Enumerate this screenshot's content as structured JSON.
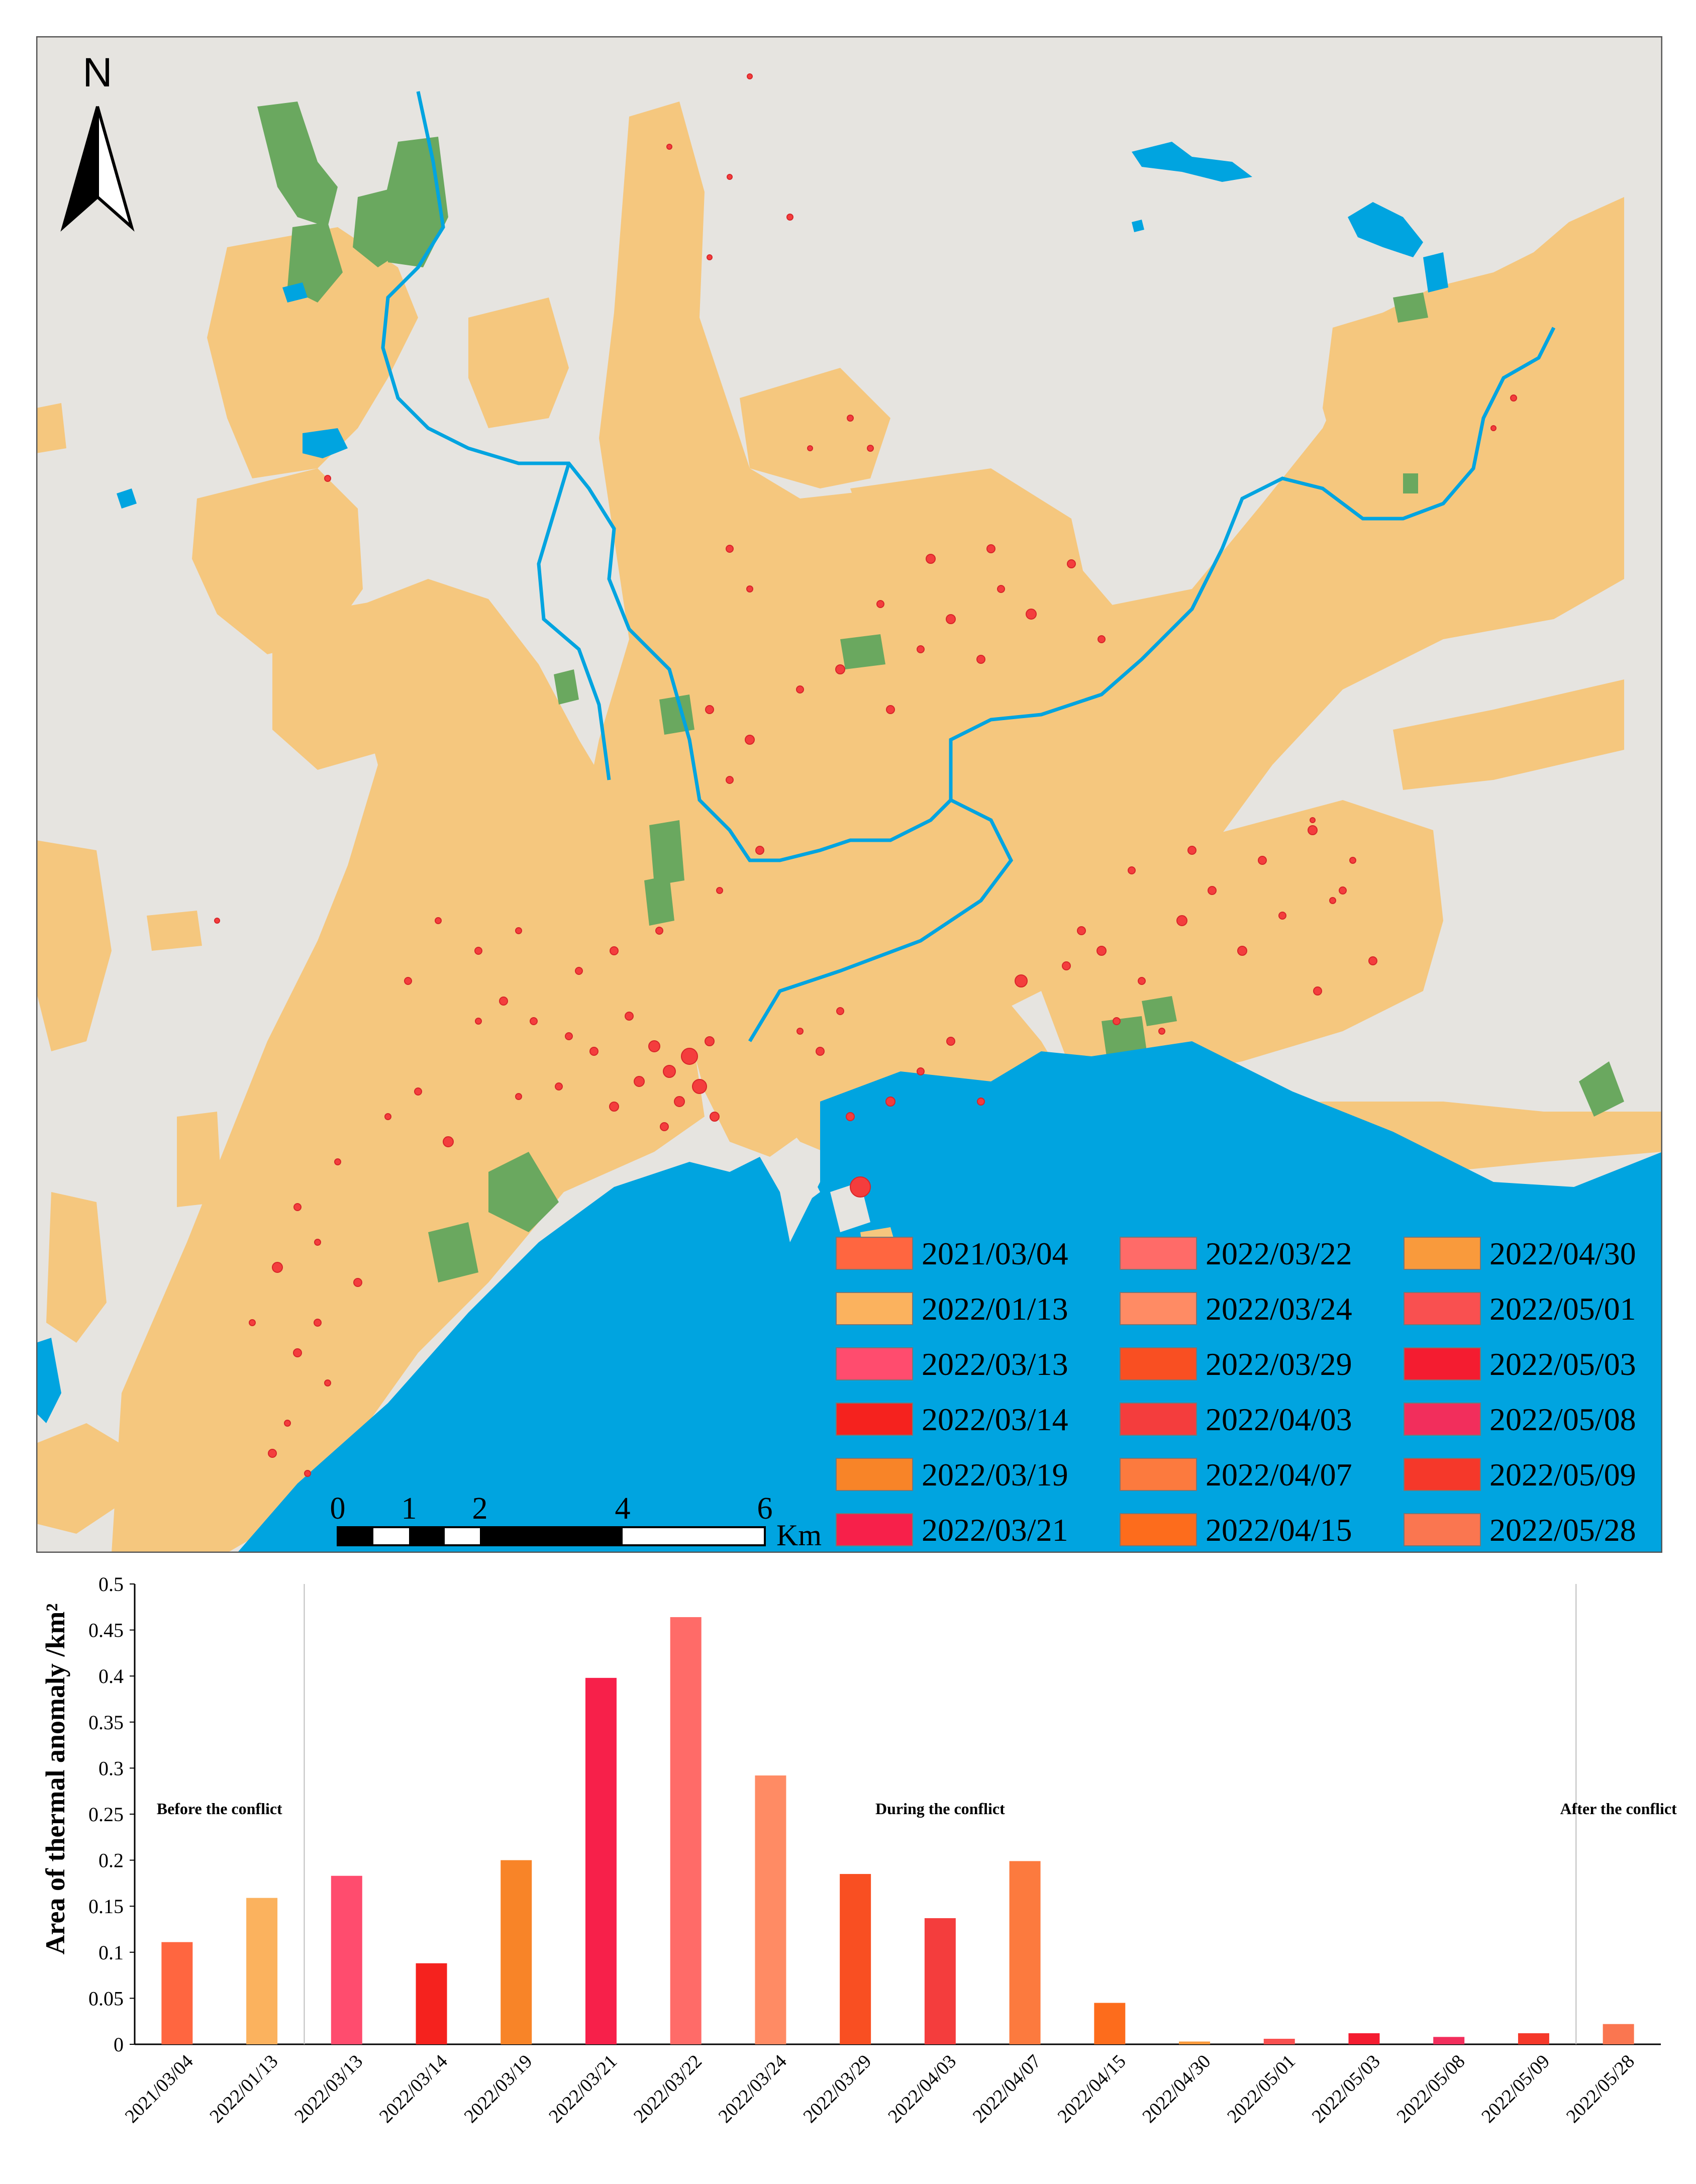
{
  "map": {
    "north_label": "N",
    "scale_ticks": [
      "0",
      "1",
      "2",
      "4",
      "6"
    ],
    "scale_unit": "Km",
    "legend": [
      {
        "label": "2021/03/04",
        "color": "#FF6640"
      },
      {
        "label": "2022/01/13",
        "color": "#FBB25E"
      },
      {
        "label": "2022/03/13",
        "color": "#FF4C6E"
      },
      {
        "label": "2022/03/14",
        "color": "#F5221E"
      },
      {
        "label": "2022/03/19",
        "color": "#F88428"
      },
      {
        "label": "2022/03/21",
        "color": "#F7204A"
      },
      {
        "label": "2022/03/22",
        "color": "#FF6B68"
      },
      {
        "label": "2022/03/24",
        "color": "#FF8B64"
      },
      {
        "label": "2022/03/29",
        "color": "#F94F22"
      },
      {
        "label": "2022/04/03",
        "color": "#F43D3D"
      },
      {
        "label": "2022/04/07",
        "color": "#FC7A3E"
      },
      {
        "label": "2022/04/15",
        "color": "#FD6C1C"
      },
      {
        "label": "2022/04/30",
        "color": "#F99A3C"
      },
      {
        "label": "2022/05/01",
        "color": "#F95050"
      },
      {
        "label": "2022/05/03",
        "color": "#F41C30"
      },
      {
        "label": "2022/05/08",
        "color": "#F22E5C"
      },
      {
        "label": "2022/05/09",
        "color": "#F5382A"
      },
      {
        "label": "2022/05/28",
        "color": "#FA7650"
      }
    ],
    "colors": {
      "background": "#E6E4E0",
      "urban": "#F5C77E",
      "vegetation": "#6AA85F",
      "water": "#00A4E0",
      "border": "#555555"
    }
  },
  "chart_data": {
    "type": "bar",
    "title": "",
    "xlabel": "",
    "ylabel": "Area of thermal anomaly /km²",
    "ylim": [
      0,
      0.5
    ],
    "yticks": [
      "0",
      "0.05",
      "0.1",
      "0.15",
      "0.2",
      "0.25",
      "0.3",
      "0.35",
      "0.4",
      "0.45",
      "0.5"
    ],
    "grid": false,
    "categories": [
      "2021/03/04",
      "2022/01/13",
      "2022/03/13",
      "2022/03/14",
      "2022/03/19",
      "2022/03/21",
      "2022/03/22",
      "2022/03/24",
      "2022/03/29",
      "2022/04/03",
      "2022/04/07",
      "2022/04/15",
      "2022/04/30",
      "2022/05/01",
      "2022/05/03",
      "2022/05/08",
      "2022/05/09",
      "2022/05/28"
    ],
    "values": [
      0.111,
      0.159,
      0.183,
      0.088,
      0.2,
      0.398,
      0.464,
      0.292,
      0.185,
      0.137,
      0.199,
      0.045,
      0.003,
      0.006,
      0.012,
      0.008,
      0.012,
      0.022
    ],
    "colors": [
      "#FF6640",
      "#FBB25E",
      "#FF4C6E",
      "#F5221E",
      "#F88428",
      "#F7204A",
      "#FF6B68",
      "#FF8B64",
      "#F94F22",
      "#F43D3D",
      "#FC7A3E",
      "#FD6C1C",
      "#F99A3C",
      "#F95050",
      "#F41C30",
      "#F22E5C",
      "#F5382A",
      "#FA7650"
    ],
    "periods": [
      {
        "label": "Before the conflict",
        "start": 0,
        "end": 1
      },
      {
        "label": "During the conflict",
        "start": 2,
        "end": 16
      },
      {
        "label": "After the conflict",
        "start": 17,
        "end": 17
      }
    ]
  }
}
